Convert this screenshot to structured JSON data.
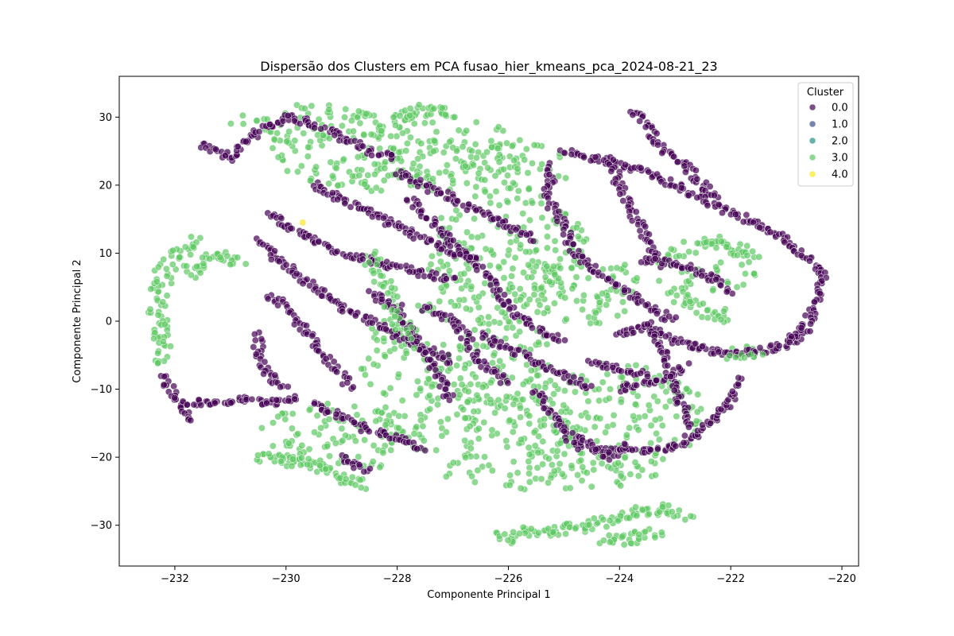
{
  "chart_data": {
    "type": "scatter",
    "title": "Dispersão dos Clusters em PCA fusao_hier_kmeans_pca_2024-08-21_23",
    "xlabel": "Componente Principal 1",
    "ylabel": "Componente Principal 2",
    "xlim": [
      -233.0,
      -219.7
    ],
    "ylim": [
      -36.0,
      36.0
    ],
    "xticks": [
      -232,
      -230,
      -228,
      -226,
      -224,
      -222,
      -220
    ],
    "yticks": [
      -30,
      -20,
      -10,
      0,
      10,
      20,
      30
    ],
    "xtick_labels": [
      "−232",
      "−230",
      "−228",
      "−226",
      "−224",
      "−222",
      "−220"
    ],
    "ytick_labels": [
      "−30",
      "−20",
      "−10",
      "0",
      "10",
      "20",
      "30"
    ],
    "grid": false,
    "legend": {
      "title": "Cluster",
      "placement": "top-right",
      "entries": [
        {
          "label": "0.0",
          "color": "#440154"
        },
        {
          "label": "1.0",
          "color": "#3b528b"
        },
        {
          "label": "2.0",
          "color": "#21918c"
        },
        {
          "label": "3.0",
          "color": "#5ec962"
        },
        {
          "label": "4.0",
          "color": "#fde725"
        }
      ]
    },
    "series": [
      {
        "name": "0.0",
        "color": "#440154",
        "paths": [
          [
            [
              -231.5,
              26
            ],
            [
              -231,
              24
            ],
            [
              -230.5,
              28
            ],
            [
              -230,
              30
            ],
            [
              -229.5,
              29
            ],
            [
              -229,
              27
            ],
            [
              -228.5,
              25
            ],
            [
              -228,
              24
            ]
          ],
          [
            [
              -230.5,
              12
            ],
            [
              -230,
              8
            ],
            [
              -229.5,
              5
            ],
            [
              -229,
              2
            ],
            [
              -228.5,
              0
            ],
            [
              -228,
              -2
            ],
            [
              -227.5,
              -4
            ],
            [
              -227,
              -6
            ]
          ],
          [
            [
              -230.3,
              16
            ],
            [
              -230,
              14
            ],
            [
              -229.5,
              12
            ],
            [
              -229,
              10
            ],
            [
              -228.5,
              9
            ],
            [
              -228,
              8
            ],
            [
              -227.5,
              7
            ],
            [
              -227,
              6
            ]
          ],
          [
            [
              -230.3,
              4
            ],
            [
              -230,
              2
            ],
            [
              -229.8,
              0
            ],
            [
              -229.5,
              -3
            ],
            [
              -229.2,
              -6
            ],
            [
              -229,
              -8
            ],
            [
              -228.8,
              -10
            ]
          ],
          [
            [
              -230.5,
              -2
            ],
            [
              -230.5,
              -5
            ],
            [
              -230.3,
              -8
            ],
            [
              -230,
              -10
            ]
          ],
          [
            [
              -231.8,
              -12
            ],
            [
              -231.2,
              -12
            ],
            [
              -230.8,
              -11.5
            ],
            [
              -230.3,
              -12
            ],
            [
              -229.8,
              -11
            ]
          ],
          [
            [
              -232.2,
              -8
            ],
            [
              -232.1,
              -10
            ],
            [
              -231.8,
              -13
            ],
            [
              -231.7,
              -15
            ]
          ],
          [
            [
              -229.5,
              -12
            ],
            [
              -229,
              -14
            ],
            [
              -228.5,
              -16
            ],
            [
              -228,
              -17
            ],
            [
              -227.5,
              -19
            ]
          ],
          [
            [
              -229,
              -20
            ],
            [
              -228.8,
              -21
            ],
            [
              -228.5,
              -22
            ]
          ],
          [
            [
              -229.5,
              20
            ],
            [
              -229,
              18
            ],
            [
              -228.5,
              16
            ],
            [
              -228,
              14
            ],
            [
              -227.5,
              12
            ],
            [
              -227,
              10
            ],
            [
              -226.5,
              9
            ]
          ],
          [
            [
              -228,
              22
            ],
            [
              -227.5,
              20
            ],
            [
              -227,
              18
            ],
            [
              -226.5,
              16
            ],
            [
              -226,
              14
            ],
            [
              -225.5,
              12
            ]
          ],
          [
            [
              -228.5,
              4
            ],
            [
              -228,
              2
            ],
            [
              -227.8,
              -1
            ],
            [
              -227.5,
              -5
            ],
            [
              -227.2,
              -9
            ],
            [
              -227,
              -12
            ]
          ],
          [
            [
              -227.8,
              18
            ],
            [
              -227.3,
              14
            ],
            [
              -226.8,
              10
            ],
            [
              -226.3,
              6
            ],
            [
              -226,
              2
            ],
            [
              -225.5,
              -1
            ],
            [
              -225,
              -3
            ]
          ],
          [
            [
              -226.5,
              -2
            ],
            [
              -226,
              -4
            ],
            [
              -225.5,
              -6
            ],
            [
              -225,
              -8
            ],
            [
              -224.5,
              -10
            ]
          ],
          [
            [
              -227.5,
              2
            ],
            [
              -227,
              0
            ],
            [
              -226.7,
              -3
            ],
            [
              -226.5,
              -6
            ],
            [
              -226,
              -9
            ]
          ],
          [
            [
              -225.5,
              -10
            ],
            [
              -225.3,
              -13
            ],
            [
              -225,
              -16
            ],
            [
              -224.7,
              -19
            ]
          ],
          [
            [
              -225,
              25
            ],
            [
              -224.5,
              24
            ],
            [
              -224,
              23
            ],
            [
              -223.5,
              22
            ],
            [
              -223,
              20
            ],
            [
              -222.5,
              18
            ]
          ],
          [
            [
              -225.2,
              23
            ],
            [
              -225.3,
              18
            ],
            [
              -225,
              14
            ],
            [
              -224.8,
              10
            ],
            [
              -224.5,
              8
            ],
            [
              -224,
              5
            ],
            [
              -223.5,
              2
            ],
            [
              -223,
              0
            ]
          ],
          [
            [
              -224.2,
              24
            ],
            [
              -224,
              20
            ],
            [
              -223.8,
              16
            ],
            [
              -223.5,
              12
            ],
            [
              -223.2,
              8
            ]
          ],
          [
            [
              -223.8,
              31
            ],
            [
              -223.5,
              29
            ],
            [
              -223.3,
              26
            ],
            [
              -223,
              24
            ],
            [
              -222.7,
              22
            ],
            [
              -222.5,
              20
            ],
            [
              -222.2,
              18
            ]
          ],
          [
            [
              -223.6,
              9
            ],
            [
              -223,
              8.5
            ],
            [
              -222.5,
              7
            ],
            [
              -222.2,
              6
            ],
            [
              -222,
              4
            ]
          ],
          [
            [
              -224,
              -2
            ],
            [
              -223.5,
              -1
            ],
            [
              -223,
              -3
            ],
            [
              -222.5,
              -4
            ],
            [
              -222,
              -5
            ],
            [
              -221.5,
              -4.5
            ],
            [
              -221,
              -3.5
            ],
            [
              -220.6,
              -1
            ]
          ],
          [
            [
              -223.5,
              0
            ],
            [
              -223.2,
              -5
            ],
            [
              -223,
              -10
            ],
            [
              -222.8,
              -14
            ],
            [
              -222.7,
              -16
            ]
          ],
          [
            [
              -224.5,
              -19
            ],
            [
              -224,
              -19
            ],
            [
              -223.5,
              -19
            ],
            [
              -223,
              -18.5
            ],
            [
              -222.5,
              -16
            ],
            [
              -222,
              -12
            ],
            [
              -221.8,
              -8
            ]
          ],
          [
            [
              -224,
              -10
            ],
            [
              -223.5,
              -9
            ],
            [
              -223,
              -8
            ],
            [
              -222.8,
              -6
            ]
          ],
          [
            [
              -222.5,
              18
            ],
            [
              -222,
              16
            ],
            [
              -221.5,
              14
            ],
            [
              -221,
              12
            ],
            [
              -220.6,
              9
            ],
            [
              -220.3,
              7
            ],
            [
              -220.4,
              4
            ],
            [
              -220.6,
              0
            ],
            [
              -221,
              -3
            ]
          ],
          [
            [
              -224.5,
              -6
            ],
            [
              -224,
              -7
            ],
            [
              -223.5,
              -8
            ]
          ],
          [
            [
              -224.8,
              -17
            ],
            [
              -224.2,
              -20
            ],
            [
              -223.8,
              -18
            ]
          ]
        ],
        "width": 0.18
      },
      {
        "name": "3.0",
        "color": "#5ec962",
        "regions": [
          {
            "cx": -228.0,
            "cy": 25,
            "rx": 2.3,
            "ry": 6
          },
          {
            "cx": -226.5,
            "cy": 23,
            "rx": 1.8,
            "ry": 4
          },
          {
            "cx": -229.5,
            "cy": 29,
            "rx": 1.5,
            "ry": 3
          },
          {
            "cx": -226.0,
            "cy": 10,
            "rx": 1.5,
            "ry": 10
          },
          {
            "cx": -227.0,
            "cy": -5,
            "rx": 1.8,
            "ry": 8
          },
          {
            "cx": -229.0,
            "cy": -17,
            "rx": 1.6,
            "ry": 5
          },
          {
            "cx": -226.5,
            "cy": -15,
            "rx": 2.0,
            "ry": 5
          },
          {
            "cx": -224.2,
            "cy": -14,
            "rx": 1.8,
            "ry": 8
          },
          {
            "cx": -225.3,
            "cy": -22,
            "rx": 2.0,
            "ry": 3
          },
          {
            "cx": -224.8,
            "cy": 5,
            "rx": 1.2,
            "ry": 6
          },
          {
            "cx": -222.5,
            "cy": 8,
            "rx": 1.0,
            "ry": 4
          }
        ],
        "paths": [
          [
            [
              -232.3,
              4
            ],
            [
              -232.2,
              7
            ],
            [
              -232,
              9
            ],
            [
              -231.8,
              11
            ],
            [
              -231.6,
              12
            ]
          ],
          [
            [
              -232.3,
              3
            ],
            [
              -232.3,
              -1
            ],
            [
              -232.2,
              -4
            ],
            [
              -232.2,
              -7
            ]
          ],
          [
            [
              -231.8,
              7
            ],
            [
              -231.5,
              9
            ],
            [
              -231,
              9.5
            ],
            [
              -230.8,
              8
            ]
          ],
          [
            [
              -225.8,
              -31
            ],
            [
              -225.2,
              -30.5
            ],
            [
              -224.5,
              -30
            ],
            [
              -224,
              -29
            ],
            [
              -223.5,
              -28
            ],
            [
              -223,
              -27.5
            ],
            [
              -222.8,
              -29
            ]
          ],
          [
            [
              -224.3,
              -32
            ],
            [
              -223.8,
              -32
            ],
            [
              -223.3,
              -31
            ]
          ],
          [
            [
              -226.2,
              -31.5
            ],
            [
              -225.8,
              -32
            ]
          ],
          [
            [
              -222.5,
              12
            ],
            [
              -222,
              11
            ],
            [
              -221.5,
              9
            ]
          ],
          [
            [
              -223,
              4
            ],
            [
              -222.5,
              2
            ],
            [
              -222,
              0
            ]
          ],
          [
            [
              -222,
              -5
            ],
            [
              -221.6,
              -4.5
            ],
            [
              -221.4,
              -4
            ]
          ],
          [
            [
              -230.5,
              -20
            ],
            [
              -229.5,
              -21
            ],
            [
              -229,
              -23
            ],
            [
              -228.5,
              -24
            ]
          ],
          [
            [
              -228,
              30
            ],
            [
              -227.5,
              31
            ],
            [
              -227,
              30.5
            ]
          ],
          [
            [
              -228.5,
              10
            ],
            [
              -228.2,
              5
            ],
            [
              -228,
              0
            ],
            [
              -227.6,
              -4
            ]
          ]
        ]
      },
      {
        "name": "4.0",
        "color": "#fde725",
        "points": [
          [
            -229.7,
            14.5
          ]
        ]
      }
    ]
  }
}
